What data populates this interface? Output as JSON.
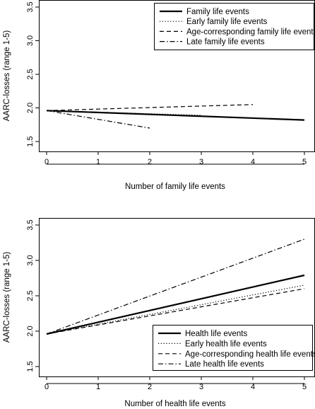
{
  "chart_data": [
    {
      "type": "line",
      "xlabel": "Number of family life events",
      "ylabel": "AARC-losses (range 1-5)",
      "xlim": [
        0,
        5
      ],
      "ylim": [
        1.5,
        3.5
      ],
      "xticks": [
        "0",
        "1",
        "2",
        "3",
        "4",
        "5"
      ],
      "yticks": [
        "1.5",
        "2.0",
        "2.5",
        "3.0",
        "3.5"
      ],
      "legend_position": "top-right",
      "series": [
        {
          "name": "Family life events",
          "style": "solid",
          "x": [
            0,
            5
          ],
          "y": [
            1.96,
            1.82
          ]
        },
        {
          "name": "Early family life events",
          "style": "dotted",
          "x": [
            0,
            3
          ],
          "y": [
            1.96,
            1.89
          ]
        },
        {
          "name": "Age-corresponding family life events",
          "style": "dashed",
          "x": [
            0,
            4
          ],
          "y": [
            1.96,
            2.05
          ]
        },
        {
          "name": "Late family life events",
          "style": "dashdot",
          "x": [
            0,
            2
          ],
          "y": [
            1.96,
            1.7
          ]
        }
      ]
    },
    {
      "type": "line",
      "xlabel": "Number of health life events",
      "ylabel": "AARC-losses (range 1-5)",
      "xlim": [
        0,
        5
      ],
      "ylim": [
        1.5,
        3.5
      ],
      "xticks": [
        "0",
        "1",
        "2",
        "3",
        "4",
        "5"
      ],
      "yticks": [
        "1.5",
        "2.0",
        "2.5",
        "3.0",
        "3.5"
      ],
      "legend_position": "bottom-right",
      "series": [
        {
          "name": "Health life events",
          "style": "solid",
          "x": [
            0,
            5
          ],
          "y": [
            1.96,
            2.79
          ]
        },
        {
          "name": "Early health life events",
          "style": "dotted",
          "x": [
            0,
            5
          ],
          "y": [
            1.96,
            2.65
          ]
        },
        {
          "name": "Age-corresponding health life events",
          "style": "dashed",
          "x": [
            0,
            5
          ],
          "y": [
            1.96,
            2.6
          ]
        },
        {
          "name": "Late health life events",
          "style": "dashdot",
          "x": [
            0,
            5
          ],
          "y": [
            1.96,
            3.3
          ]
        }
      ]
    }
  ]
}
